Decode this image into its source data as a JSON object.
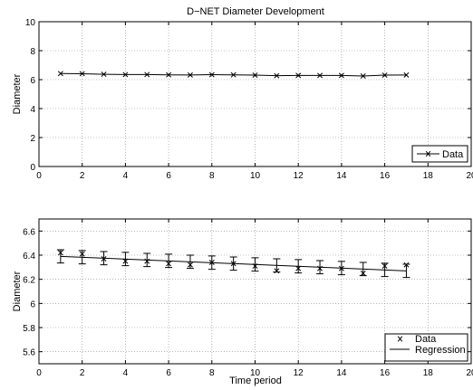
{
  "chart_data": [
    {
      "type": "line",
      "title": "D−NET Diameter Development",
      "xlabel": "",
      "ylabel": "Diameter",
      "xlim": [
        0,
        20
      ],
      "ylim": [
        0,
        10
      ],
      "xticks": [
        "0",
        "2",
        "4",
        "6",
        "8",
        "10",
        "12",
        "14",
        "16",
        "18",
        "20"
      ],
      "yticks": [
        "0",
        "2",
        "4",
        "6",
        "8",
        "10"
      ],
      "grid": true,
      "legend_position": "bottom-right",
      "series": [
        {
          "name": "Data",
          "marker": "x",
          "line": true,
          "x": [
            1,
            2,
            3,
            4,
            5,
            6,
            7,
            8,
            9,
            10,
            11,
            12,
            13,
            14,
            15,
            16,
            17
          ],
          "y": [
            6.42,
            6.41,
            6.37,
            6.35,
            6.35,
            6.33,
            6.32,
            6.34,
            6.33,
            6.31,
            6.27,
            6.29,
            6.29,
            6.29,
            6.25,
            6.31,
            6.32
          ]
        }
      ]
    },
    {
      "type": "line",
      "title": "",
      "xlabel": "Time period",
      "ylabel": "Diameter",
      "xlim": [
        0,
        20
      ],
      "ylim": [
        5.5,
        6.7
      ],
      "xticks": [
        "0",
        "2",
        "4",
        "6",
        "8",
        "10",
        "12",
        "14",
        "16",
        "18",
        "20"
      ],
      "yticks": [
        "5.6",
        "5.8",
        "6",
        "6.2",
        "6.4",
        "6.6"
      ],
      "grid": true,
      "legend_position": "bottom-right",
      "series": [
        {
          "name": "Data",
          "marker": "x",
          "line": false,
          "x": [
            1,
            2,
            3,
            4,
            5,
            6,
            7,
            8,
            9,
            10,
            11,
            12,
            13,
            14,
            15,
            16,
            17
          ],
          "y": [
            6.42,
            6.41,
            6.37,
            6.35,
            6.35,
            6.33,
            6.32,
            6.34,
            6.33,
            6.31,
            6.27,
            6.29,
            6.29,
            6.29,
            6.25,
            6.31,
            6.32
          ]
        },
        {
          "name": "Regression",
          "marker": "none",
          "line": true,
          "x": [
            1,
            17
          ],
          "y": [
            6.39,
            6.27
          ],
          "error_bar_x": [
            1,
            2,
            3,
            4,
            5,
            6,
            7,
            8,
            9,
            10,
            11,
            12,
            13,
            14,
            15,
            16,
            17
          ],
          "error_bar_center": [
            6.39,
            6.383,
            6.375,
            6.368,
            6.36,
            6.353,
            6.345,
            6.338,
            6.33,
            6.323,
            6.315,
            6.308,
            6.3,
            6.293,
            6.285,
            6.278,
            6.27
          ],
          "error_bar_halfwidth": 0.055
        }
      ]
    }
  ]
}
